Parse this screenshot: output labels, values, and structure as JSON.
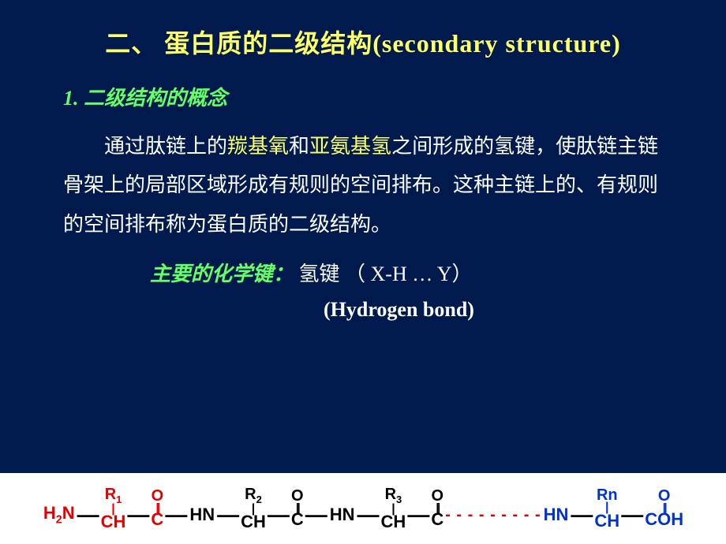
{
  "title": "二、 蛋白质的二级结构(secondary structure)",
  "section": {
    "number": "1.",
    "heading": "二级结构的概念"
  },
  "paragraph": {
    "pre": "通过肽链上的",
    "hl1": "羰基氧",
    "mid1": "和",
    "hl2": "亚氨基氢",
    "rest": "之间形成的氢键，使肽链主链骨架上的局部区域形成有规则的空间排布。这种主链上的、有规则的空间排布称为蛋白质的二级结构。"
  },
  "bond": {
    "label": "主要的化学键：",
    "text": "氢键 （ X-H … Y）",
    "english": "(Hydrogen bond)"
  },
  "chem": {
    "nh2": "H₂N",
    "r1": "R",
    "r1sub": "1",
    "r2": "R",
    "r2sub": "2",
    "r3": "R",
    "r3sub": "3",
    "rn": "Rn",
    "ch": "CH",
    "hn": "HN",
    "o": "O",
    "c": "C",
    "coh": "COH",
    "colors": {
      "red": "#e50000",
      "blue": "#0033cc",
      "black": "#000000",
      "bg": "#ffffff"
    }
  },
  "style": {
    "page_bg": "#001a4d",
    "title_color": "#ffff66",
    "subtitle_color": "#66ff66",
    "text_color": "#ffffff",
    "highlight_color": "#ffff66",
    "title_fontsize": 32,
    "body_fontsize": 26
  }
}
